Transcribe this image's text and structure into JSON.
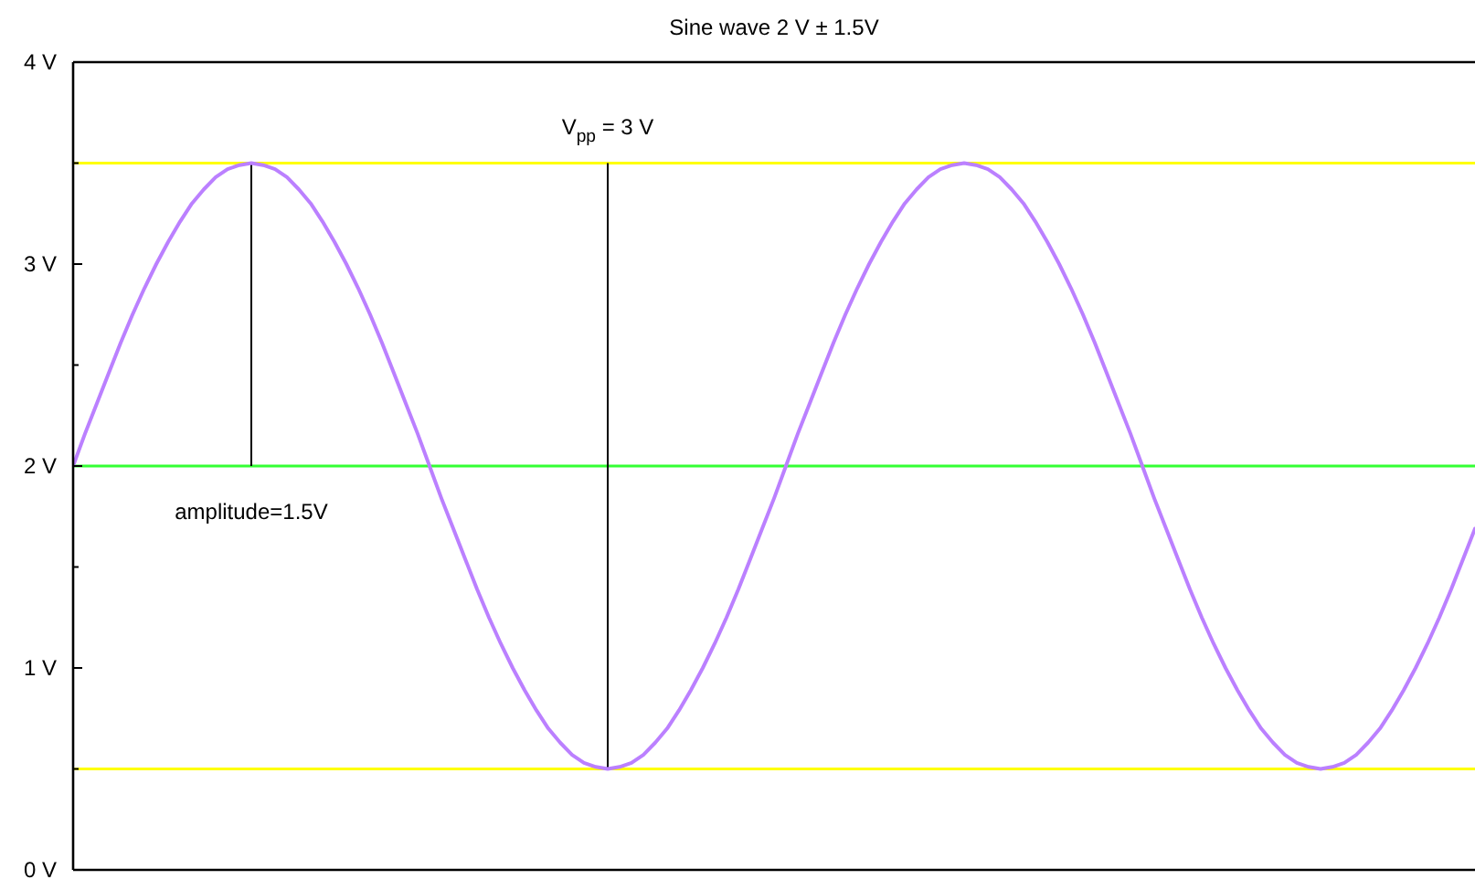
{
  "chart_data": {
    "type": "line",
    "title": "Sine wave 2 V ± 1.5V",
    "categories": [
      null,
      null,
      null,
      null,
      null,
      null,
      null,
      null,
      null,
      null,
      null,
      null,
      null,
      null,
      null,
      null,
      null,
      null,
      null,
      null,
      null,
      null,
      null,
      null,
      null,
      null,
      null,
      null,
      null,
      null,
      null,
      null,
      null,
      null,
      null,
      null,
      null,
      null,
      null,
      null,
      null,
      null,
      null,
      null,
      null,
      null,
      null,
      null,
      null,
      null,
      null,
      null,
      null,
      null,
      null,
      null,
      null,
      null,
      null,
      null,
      null,
      null,
      null,
      null,
      null,
      null,
      null,
      null,
      null,
      null,
      null,
      null,
      null,
      null,
      null,
      null,
      null,
      null,
      null,
      null,
      null,
      null,
      null,
      null,
      null,
      null,
      null,
      null,
      null,
      null,
      null,
      null,
      null,
      null,
      null,
      null,
      null,
      null,
      null,
      null,
      null,
      null,
      null,
      null,
      null,
      null,
      null,
      null,
      null,
      null,
      null,
      null,
      null,
      null,
      null,
      null,
      null,
      null,
      null
    ],
    "series": [
      {
        "color": "#bb80ff",
        "values": [
          2,
          2.16,
          2.31,
          2.46,
          2.61,
          2.75,
          2.88,
          3.0,
          3.11,
          3.21,
          3.3,
          3.37,
          3.43,
          3.47,
          3.49,
          3.5,
          3.49,
          3.47,
          3.43,
          3.37,
          3.3,
          3.21,
          3.11,
          3.0,
          2.88,
          2.75,
          2.61,
          2.46,
          2.31,
          2.16,
          2,
          1.84,
          1.69,
          1.54,
          1.39,
          1.25,
          1.12,
          1.0,
          0.89,
          0.79,
          0.7,
          0.63,
          0.57,
          0.53,
          0.51,
          0.5,
          0.51,
          0.53,
          0.57,
          0.63,
          0.7,
          0.79,
          0.89,
          1.0,
          1.12,
          1.25,
          1.39,
          1.54,
          1.69,
          1.84,
          2,
          2.16,
          2.31,
          2.46,
          2.61,
          2.75,
          2.88,
          3.0,
          3.11,
          3.21,
          3.3,
          3.37,
          3.43,
          3.47,
          3.49,
          3.5,
          3.49,
          3.47,
          3.43,
          3.37,
          3.3,
          3.21,
          3.11,
          3.0,
          2.88,
          2.75,
          2.61,
          2.46,
          2.31,
          2.16,
          2,
          1.84,
          1.69,
          1.54,
          1.39,
          1.25,
          1.12,
          1.0,
          0.89,
          0.79,
          0.7,
          0.63,
          0.57,
          0.53,
          0.51,
          0.5,
          0.51,
          0.53,
          0.57,
          0.63,
          0.7,
          0.79,
          0.89,
          1.0,
          1.12,
          1.25,
          1.39,
          1.54,
          1.69
        ]
      }
    ],
    "ylim": [
      0,
      4
    ],
    "yticks": [
      {
        "value": 0,
        "label": "0 V"
      },
      {
        "value": 0.5,
        "label": null
      },
      {
        "value": 1,
        "label": "1 V"
      },
      {
        "value": 1.5,
        "label": null
      },
      {
        "value": 2,
        "label": "2 V"
      },
      {
        "value": 2.5,
        "label": null
      },
      {
        "value": 3,
        "label": "3 V"
      },
      {
        "value": 3.5,
        "label": null
      },
      {
        "value": 4,
        "label": "4 V"
      }
    ],
    "tick_labels": "y",
    "ref_lines": [
      {
        "axis": "y",
        "value": 3.5,
        "color": "#ffff00"
      },
      {
        "axis": "y",
        "value": 2,
        "color": "#33ff33"
      },
      {
        "axis": "y",
        "value": 0.5,
        "color": "#ffff00"
      }
    ],
    "annotations": [
      {
        "text": "amplitude=1.5V",
        "y": 2
      },
      {
        "text": "V$_{pp}$ = 3 V",
        "y": 3.5
      }
    ]
  }
}
